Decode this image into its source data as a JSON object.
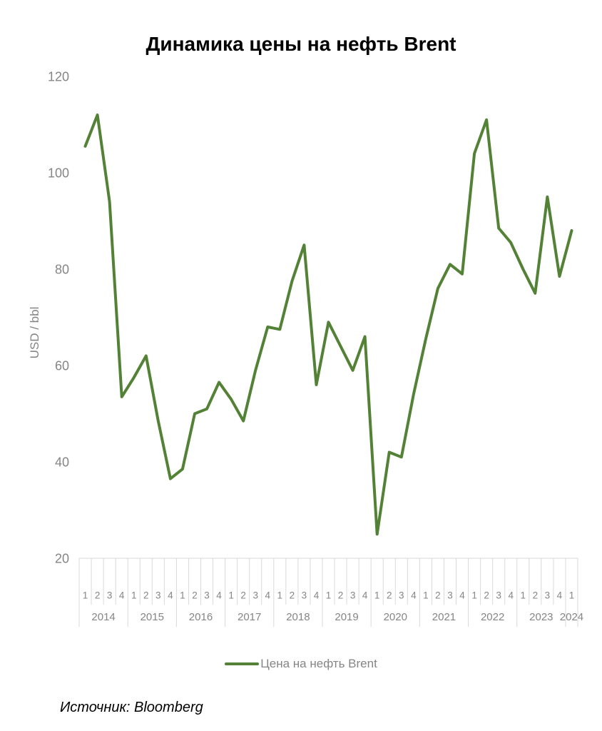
{
  "title": "Динамика цены на нефть Brent",
  "y_axis": {
    "label": "USD / bbl",
    "ticks": [
      120,
      100,
      80,
      60,
      40,
      20
    ]
  },
  "legend": {
    "label": "Цена на нефть Brent"
  },
  "source": "Источник: Bloomberg",
  "colors": {
    "line": "#538135",
    "axis_text": "#858585",
    "grid_line": "#d9d9d9",
    "title_text": "#000000"
  },
  "chart_data": {
    "type": "line",
    "title": "Динамика цены на нефть Brent",
    "xlabel": "",
    "ylabel": "USD / bbl",
    "ylim": [
      20,
      120
    ],
    "grid": false,
    "legend_position": "bottom",
    "x_axis_style": "two-level category axis: quarter number over year",
    "x": [
      {
        "year": "2014",
        "quarters": [
          "1",
          "2",
          "3",
          "4"
        ]
      },
      {
        "year": "2015",
        "quarters": [
          "1",
          "2",
          "3",
          "4"
        ]
      },
      {
        "year": "2016",
        "quarters": [
          "1",
          "2",
          "3",
          "4"
        ]
      },
      {
        "year": "2017",
        "quarters": [
          "1",
          "2",
          "3",
          "4"
        ]
      },
      {
        "year": "2018",
        "quarters": [
          "1",
          "2",
          "3",
          "4"
        ]
      },
      {
        "year": "2019",
        "quarters": [
          "1",
          "2",
          "3",
          "4"
        ]
      },
      {
        "year": "2020",
        "quarters": [
          "1",
          "2",
          "3",
          "4"
        ]
      },
      {
        "year": "2021",
        "quarters": [
          "1",
          "2",
          "3",
          "4"
        ]
      },
      {
        "year": "2022",
        "quarters": [
          "1",
          "2",
          "3",
          "4"
        ]
      },
      {
        "year": "2023",
        "quarters": [
          "1",
          "2",
          "3",
          "4"
        ]
      },
      {
        "year": "2024",
        "quarters": [
          "1"
        ]
      }
    ],
    "series": [
      {
        "name": "Цена на нефть Brent",
        "values": [
          105.5,
          112,
          94,
          53.5,
          57.5,
          62,
          48.5,
          36.5,
          38.5,
          50,
          51,
          56.5,
          53,
          48.5,
          59,
          68,
          67.5,
          77.5,
          85,
          56,
          69,
          64,
          59,
          66,
          25,
          42,
          41,
          54,
          65.5,
          76,
          81,
          79,
          104,
          111,
          88.5,
          85.5,
          80,
          75,
          95,
          78.5,
          88
        ]
      }
    ]
  }
}
